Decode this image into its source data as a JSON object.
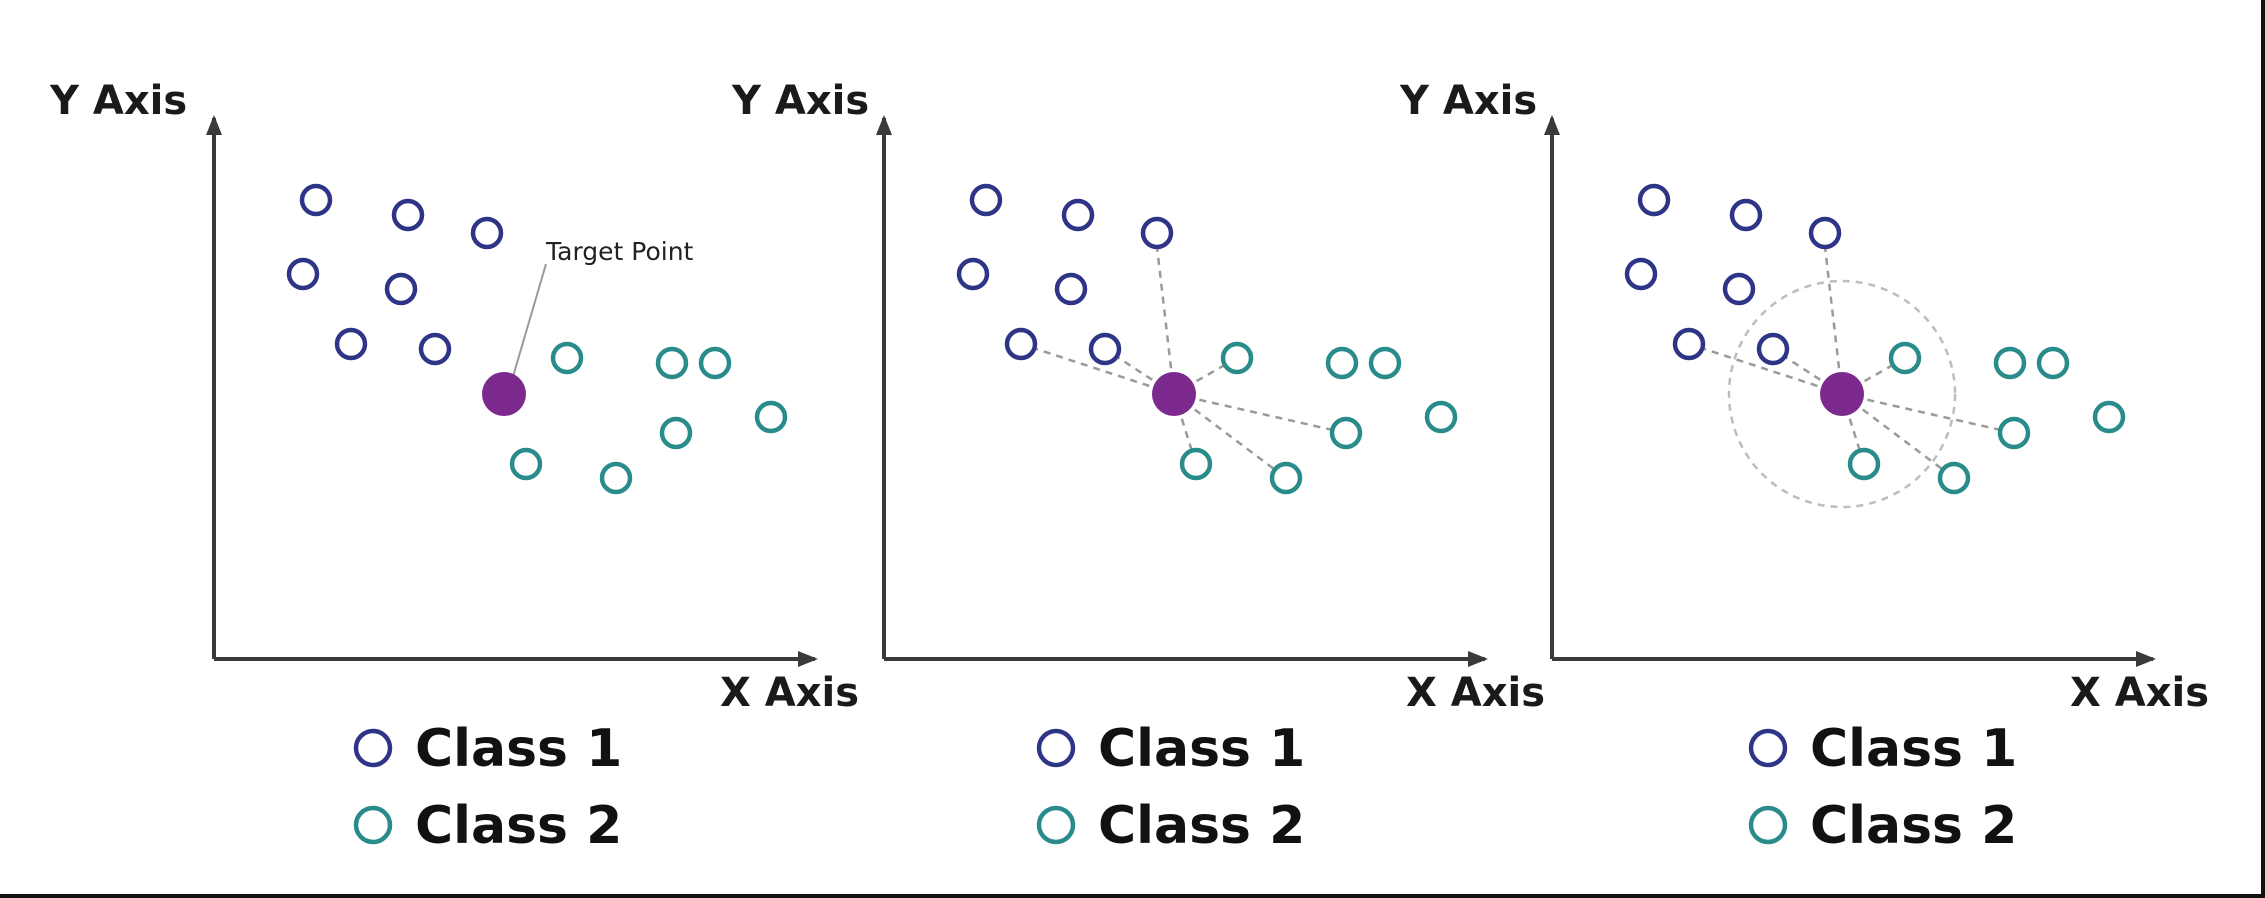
{
  "colors": {
    "class1": "#2e3587",
    "class2": "#2a8c8a",
    "target": "#7d2a8f",
    "axis": "#3a3a3a",
    "guide": "#9a9a9a",
    "radius": "#bdbdbd"
  },
  "legend": {
    "class1_label": "Class 1",
    "class2_label": "Class 2"
  },
  "panels": [
    {
      "y_label": "Y Axis",
      "x_label": "X Axis",
      "annotation": "Target Point",
      "show_lines": false,
      "show_circle": false
    },
    {
      "y_label": "Y Axis",
      "x_label": "X Axis",
      "annotation": "",
      "show_lines": true,
      "show_circle": false
    },
    {
      "y_label": "Y Axis",
      "x_label": "X Axis",
      "annotation": "",
      "show_lines": true,
      "show_circle": true
    }
  ]
}
